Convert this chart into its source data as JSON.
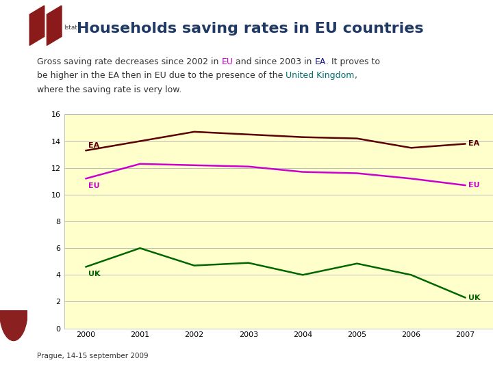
{
  "title": "Households saving rates in EU countries",
  "footer": "Prague, 14-15 september 2009",
  "years": [
    2000,
    2001,
    2002,
    2003,
    2004,
    2005,
    2006,
    2007
  ],
  "EA": [
    13.3,
    14.0,
    14.7,
    14.5,
    14.3,
    14.2,
    13.5,
    13.8
  ],
  "EU": [
    11.2,
    12.3,
    12.2,
    12.1,
    11.7,
    11.6,
    11.2,
    10.7
  ],
  "UK_x": [
    2000,
    2001,
    2002,
    2003,
    2004,
    2005,
    2006,
    2007
  ],
  "UK_y": [
    4.6,
    6.0,
    4.7,
    4.9,
    4.0,
    4.85,
    4.0,
    2.3
  ],
  "EA_color": "#5c0000",
  "EU_color": "#cc00cc",
  "UK_color": "#006600",
  "chart_bg": "#ffffcc",
  "page_bg": "#ffffff",
  "sidebar_color": "#8b2020",
  "ylim": [
    0,
    16
  ],
  "yticks": [
    0,
    2,
    4,
    6,
    8,
    10,
    12,
    14,
    16
  ],
  "title_color": "#1f3864",
  "title_fontsize": 16,
  "subtitle_fontsize": 9,
  "footer_fontsize": 7.5
}
